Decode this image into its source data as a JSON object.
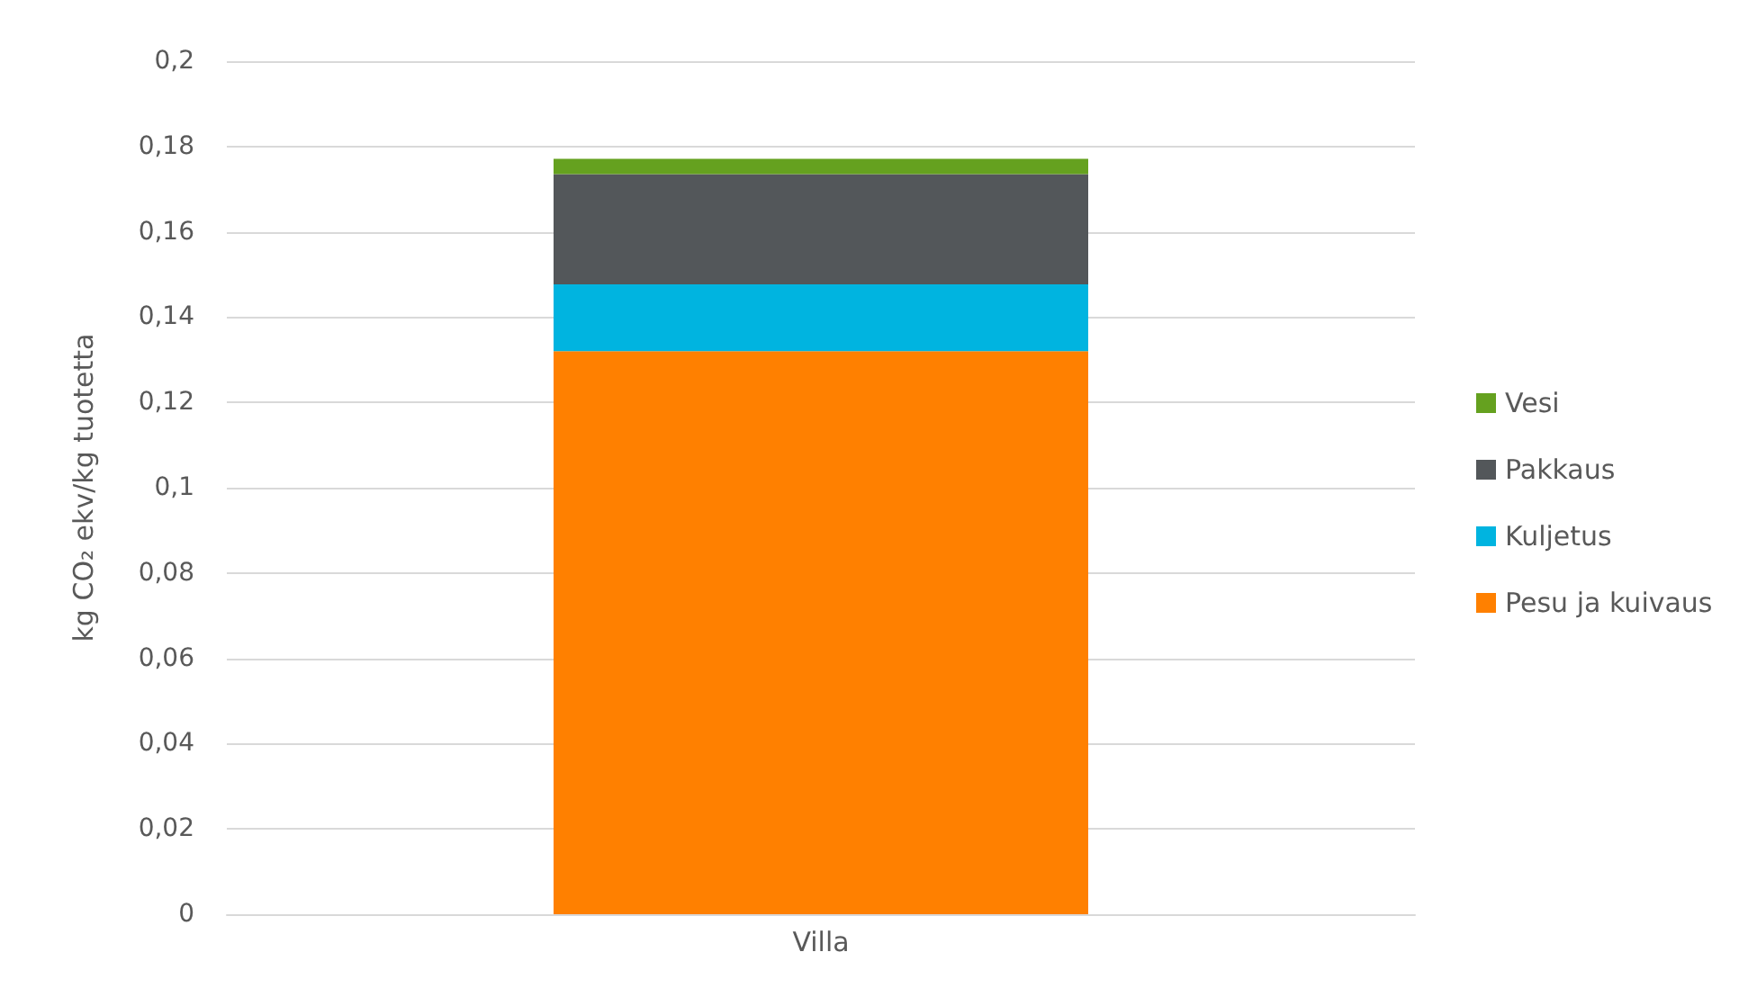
{
  "chart_data": {
    "type": "bar",
    "stacked": true,
    "ylabel": "kg CO₂ ekv/kg tuotetta",
    "categories": [
      "Villa"
    ],
    "series": [
      {
        "name": "Pesu ja kuivaus",
        "color": "#ff8000",
        "values": [
          0.132
        ]
      },
      {
        "name": "Kuljetus",
        "color": "#00b4e0",
        "values": [
          0.0157
        ]
      },
      {
        "name": "Pakkaus",
        "color": "#53575a",
        "values": [
          0.0258
        ]
      },
      {
        "name": "Vesi",
        "color": "#65a11f",
        "values": [
          0.0036
        ]
      }
    ],
    "ylim": [
      0,
      0.2
    ],
    "yticks": [
      {
        "value": 0,
        "label": "0"
      },
      {
        "value": 0.02,
        "label": "0,02"
      },
      {
        "value": 0.04,
        "label": "0,04"
      },
      {
        "value": 0.06,
        "label": "0,06"
      },
      {
        "value": 0.08,
        "label": "0,08"
      },
      {
        "value": 0.1,
        "label": "0,1"
      },
      {
        "value": 0.12,
        "label": "0,12"
      },
      {
        "value": 0.14,
        "label": "0,14"
      },
      {
        "value": 0.16,
        "label": "0,16"
      },
      {
        "value": 0.18,
        "label": "0,18"
      },
      {
        "value": 0.2,
        "label": "0,2"
      }
    ],
    "grid": "y",
    "legend": "right"
  }
}
